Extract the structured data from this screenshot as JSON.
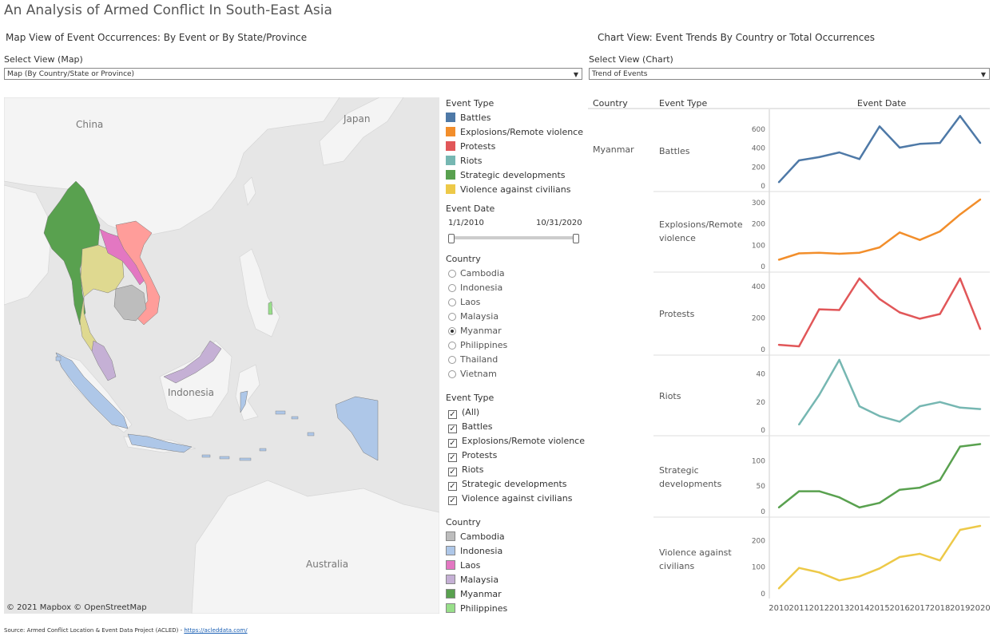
{
  "header": {
    "title": "An Analysis of Armed Conflict In South-East Asia",
    "map_subtitle": "Map View of Event Occurrences: By Event or By State/Province",
    "chart_subtitle": "Chart View: Event Trends By Country or Total Occurrences"
  },
  "map_select": {
    "label": "Select View (Map)",
    "value": "Map (By Country/State or Province)"
  },
  "chart_select": {
    "label": "Select View (Chart)",
    "value": "Trend of Events"
  },
  "map": {
    "labels": {
      "china": "China",
      "japan": "Japan",
      "indonesia": "Indonesia",
      "australia": "Australia"
    },
    "credit": "© 2021 Mapbox  © OpenStreetMap"
  },
  "event_type_legend": {
    "title": "Event Type",
    "items": [
      {
        "label": "Battles",
        "color": "#4e79a7"
      },
      {
        "label": "Explosions/Remote violence",
        "color": "#f28e2b"
      },
      {
        "label": "Protests",
        "color": "#e15759"
      },
      {
        "label": "Riots",
        "color": "#76b7b2"
      },
      {
        "label": "Strategic developments",
        "color": "#59a14f"
      },
      {
        "label": "Violence against civilians",
        "color": "#edc948"
      }
    ]
  },
  "event_date_filter": {
    "title": "Event Date",
    "start": "1/1/2010",
    "end": "10/31/2020"
  },
  "country_filter": {
    "title": "Country",
    "options": [
      "Cambodia",
      "Indonesia",
      "Laos",
      "Malaysia",
      "Myanmar",
      "Philippines",
      "Thailand",
      "Vietnam"
    ],
    "selected": "Myanmar"
  },
  "event_type_filter": {
    "title": "Event Type",
    "options": [
      "(All)",
      "Battles",
      "Explosions/Remote violence",
      "Protests",
      "Riots",
      "Strategic developments",
      "Violence against civilians"
    ],
    "check_mark": "✓"
  },
  "country_legend": {
    "title": "Country",
    "items": [
      {
        "label": "Cambodia",
        "color": "#bdbdbd"
      },
      {
        "label": "Indonesia",
        "color": "#aec7e8"
      },
      {
        "label": "Laos",
        "color": "#e377c2"
      },
      {
        "label": "Malaysia",
        "color": "#c5b0d5"
      },
      {
        "label": "Myanmar",
        "color": "#59a14f"
      },
      {
        "label": "Philippines",
        "color": "#98df8a"
      }
    ]
  },
  "chart_headers": {
    "country": "Country",
    "event_type": "Event Type",
    "event_date": "Event Date"
  },
  "chart_data": {
    "type": "line",
    "country": "Myanmar",
    "x": [
      2010,
      2011,
      2012,
      2013,
      2014,
      2015,
      2016,
      2017,
      2018,
      2019,
      2020
    ],
    "xlabel": "",
    "ylabel": "",
    "grid": false,
    "panels": [
      {
        "name": "Battles",
        "color": "#4e79a7",
        "ylim": [
          0,
          760
        ],
        "ticks": [
          0,
          200,
          400,
          600
        ],
        "values": [
          40,
          270,
          305,
          355,
          285,
          630,
          405,
          445,
          455,
          740,
          455
        ]
      },
      {
        "name": "Explosions/Remote violence",
        "color": "#f28e2b",
        "ylim": [
          0,
          330
        ],
        "ticks": [
          0,
          100,
          200,
          300
        ],
        "values": [
          32,
          62,
          65,
          60,
          65,
          90,
          160,
          125,
          165,
          245,
          315
        ]
      },
      {
        "name": "Protests",
        "color": "#e15759",
        "ylim": [
          0,
          460
        ],
        "ticks": [
          0,
          200,
          400
        ],
        "values": [
          30,
          20,
          255,
          250,
          450,
          320,
          235,
          195,
          225,
          450,
          130
        ]
      },
      {
        "name": "Riots",
        "color": "#76b7b2",
        "ylim": [
          0,
          50
        ],
        "ticks": [
          0,
          20,
          40
        ],
        "values": [
          null,
          4,
          25,
          50,
          17,
          10,
          6,
          17,
          20,
          16,
          15
        ]
      },
      {
        "name": "Strategic developments",
        "color": "#59a14f",
        "ylim": [
          0,
          140
        ],
        "ticks": [
          0,
          50,
          100
        ],
        "values": [
          8,
          40,
          40,
          28,
          8,
          17,
          43,
          47,
          62,
          128,
          133
        ]
      },
      {
        "name": "Violence against civilians",
        "color": "#edc948",
        "ylim": [
          0,
          270
        ],
        "ticks": [
          0,
          100,
          200
        ],
        "values": [
          20,
          97,
          80,
          50,
          65,
          95,
          138,
          150,
          125,
          240,
          255
        ]
      }
    ]
  },
  "panel_labels": [
    "Battles",
    "Explosions/Remote violence",
    "Protests",
    "Riots",
    "Strategic developments",
    "Violence against civilians"
  ],
  "footer": {
    "source_prefix": "Source: Armed Conflict Location & Event Data Project (ACLED) - ",
    "source_link": "https://acleddata.com/"
  }
}
